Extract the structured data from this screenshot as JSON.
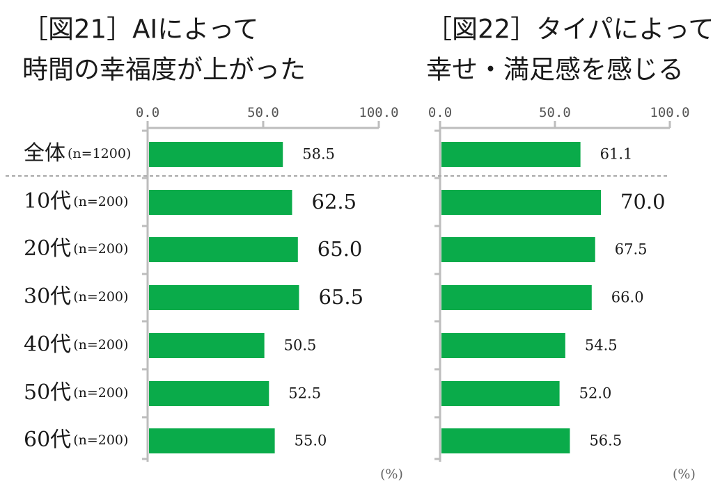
{
  "chart_data": [
    {
      "type": "bar",
      "title_lines": [
        "［図21］AIによって",
        "時間の幸福度が上がった"
      ],
      "categories": [
        "全体",
        "10代",
        "20代",
        "30代",
        "40代",
        "50代",
        "60代"
      ],
      "sample_sizes": [
        "(n=1200)",
        "(n=200)",
        "(n=200)",
        "(n=200)",
        "(n=200)",
        "(n=200)",
        "(n=200)"
      ],
      "values": [
        58.5,
        62.5,
        65.0,
        65.5,
        50.5,
        52.5,
        55.0
      ],
      "value_labels": [
        "58.5",
        "62.5",
        "65.0",
        "65.5",
        "50.5",
        "52.5",
        "55.0"
      ],
      "xlim": [
        0,
        100
      ],
      "ticks": [
        "0.0",
        "50.0",
        "100.0"
      ],
      "unit": "(%)",
      "grid": false,
      "bar_color": "#0aab4a"
    },
    {
      "type": "bar",
      "title_lines": [
        "［図22］タイパによって",
        "幸せ・満足感を感じる"
      ],
      "categories": [
        "全体",
        "10代",
        "20代",
        "30代",
        "40代",
        "50代",
        "60代"
      ],
      "values": [
        61.1,
        70.0,
        67.5,
        66.0,
        54.5,
        52.0,
        56.5
      ],
      "value_labels": [
        "61.1",
        "70.0",
        "67.5",
        "66.0",
        "54.5",
        "52.0",
        "56.5"
      ],
      "xlim": [
        0,
        100
      ],
      "ticks": [
        "0.0",
        "50.0",
        "100.0"
      ],
      "unit": "(%)",
      "grid": false,
      "bar_color": "#0aab4a"
    }
  ]
}
